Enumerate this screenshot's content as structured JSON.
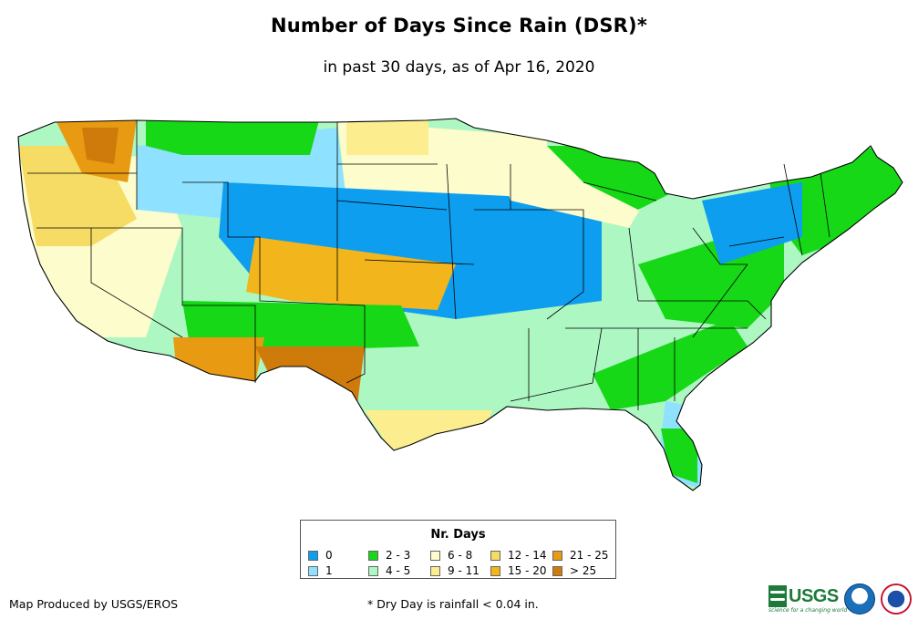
{
  "title": "Number of Days Since Rain (DSR)*",
  "subtitle": "in past 30 days, as of Apr 16, 2020",
  "legend": {
    "title": "Nr. Days",
    "items": [
      {
        "label": "0",
        "color": "#0d9ef0"
      },
      {
        "label": "1",
        "color": "#8fe2ff"
      },
      {
        "label": "2 - 3",
        "color": "#16d816"
      },
      {
        "label": "4 - 5",
        "color": "#adf7c2"
      },
      {
        "label": "6 - 8",
        "color": "#fdfccc"
      },
      {
        "label": "9 - 11",
        "color": "#fcee8e"
      },
      {
        "label": "12 - 14",
        "color": "#f6dc65"
      },
      {
        "label": "15 - 20",
        "color": "#f2b61c"
      },
      {
        "label": "21 - 25",
        "color": "#e89a13"
      },
      {
        "label": "> 25",
        "color": "#cf7b0b"
      }
    ]
  },
  "credit": "Map Produced by USGS/EROS",
  "footnote": "* Dry Day is rainfall < 0.04 in.",
  "logos": {
    "usgs_text": "USGS",
    "usgs_tagline": "science for a changing world",
    "icons": [
      "usgs-logo",
      "noaa-logo",
      "nws-logo"
    ]
  }
}
